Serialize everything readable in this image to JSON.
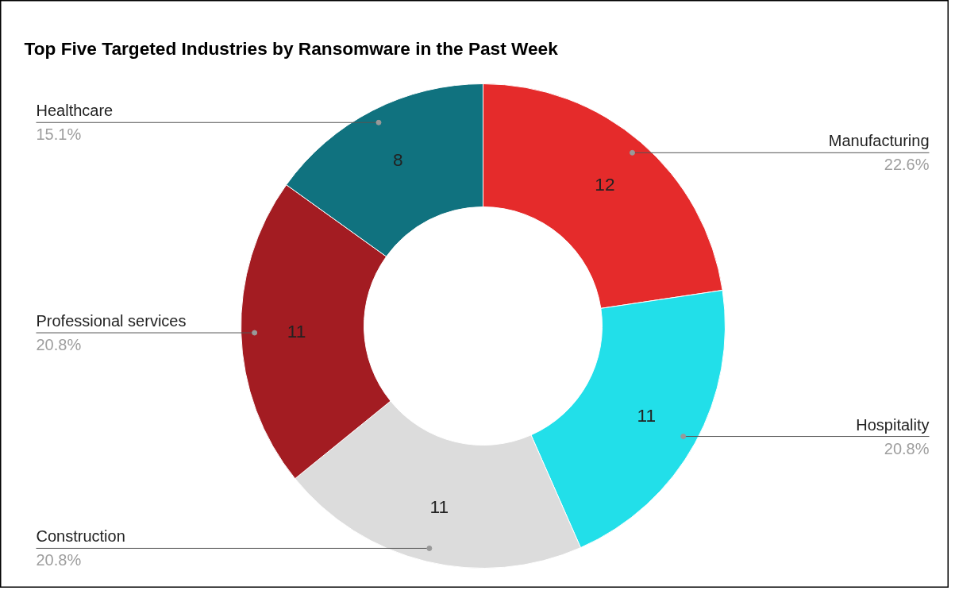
{
  "chart_data": {
    "type": "donut",
    "title": "Top Five Targeted Industries by Ransomware in the Past Week",
    "categories": [
      "Manufacturing",
      "Hospitality",
      "Construction",
      "Professional services",
      "Healthcare"
    ],
    "values": [
      12,
      11,
      11,
      11,
      8
    ],
    "data_labels": true,
    "colors": [
      "#e52b2b",
      "#22dfe9",
      "#dcdcdc",
      "#a31c22",
      "#10727f"
    ],
    "annotations": [
      {
        "text": "22.6%",
        "x": "Manufacturing"
      },
      {
        "text": "20.8%",
        "x": "Hospitality"
      },
      {
        "text": "20.8%",
        "x": "Construction"
      },
      {
        "text": "20.8%",
        "x": "Professional services"
      },
      {
        "text": "15.1%",
        "x": "Healthcare"
      }
    ]
  }
}
